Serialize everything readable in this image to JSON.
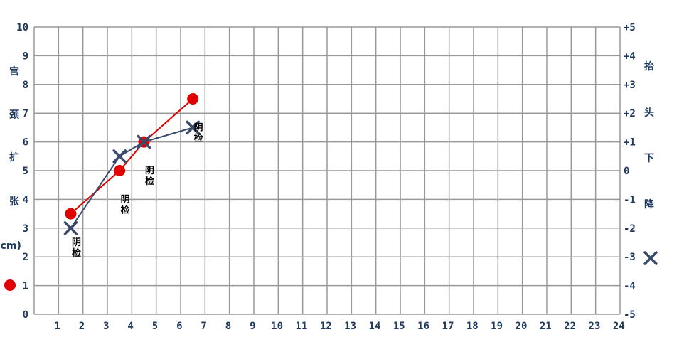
{
  "chart_data": {
    "type": "line",
    "x_ticks": [
      "1",
      "2",
      "3",
      "4",
      "5",
      "6",
      "7",
      "8",
      "9",
      "10",
      "11",
      "12",
      "13",
      "14",
      "15",
      "16",
      "17",
      "18",
      "19",
      "20",
      "21",
      "22",
      "23",
      "24"
    ],
    "y_left_ticks": [
      "0",
      "1",
      "2",
      "3",
      "4",
      "5",
      "6",
      "7",
      "8",
      "9",
      "10"
    ],
    "y_right_ticks": [
      "-5",
      "-4",
      "-3",
      "-2",
      "-1",
      "0",
      "+1",
      "+2",
      "+3",
      "+4",
      "+5"
    ],
    "xlim": [
      0,
      24
    ],
    "ylim_left": [
      0,
      10
    ],
    "ylim_right": [
      -5,
      5
    ],
    "grid": true,
    "left_axis_label": [
      "宫",
      "颈",
      "扩",
      "张",
      "(cm)"
    ],
    "right_axis_label": [
      "抬",
      "头",
      "下",
      "降"
    ],
    "colors": {
      "dilation": "#e00000",
      "descent": "#3a4a6b",
      "grid": "#999999",
      "tick": "#1f3a5f"
    },
    "legend": [
      {
        "marker": "circle",
        "color": "#e00000",
        "series": "dilation",
        "position": "left"
      },
      {
        "marker": "x",
        "color": "#3a4a6b",
        "series": "descent",
        "position": "right"
      }
    ],
    "series": [
      {
        "key": "dilation",
        "marker": "circle",
        "color": "#e00000",
        "axis": "left",
        "points": [
          [
            1.5,
            3.5
          ],
          [
            3.5,
            5
          ],
          [
            4.5,
            6
          ],
          [
            6.5,
            7.5
          ]
        ]
      },
      {
        "key": "descent",
        "marker": "x",
        "color": "#3a4a6b",
        "axis": "right",
        "points": [
          [
            1.5,
            -2
          ],
          [
            3.5,
            0.5
          ],
          [
            4.5,
            1
          ],
          [
            6.5,
            1.5
          ]
        ]
      }
    ],
    "annotations": [
      {
        "text": [
          "阴",
          "检"
        ],
        "x": 1.5,
        "y_left": 2.4
      },
      {
        "text": [
          "阴",
          "检"
        ],
        "x": 3.5,
        "y_left": 3.9
      },
      {
        "text": [
          "阴",
          "检"
        ],
        "x": 4.5,
        "y_left": 4.9
      },
      {
        "text": [
          "阴",
          "检"
        ],
        "x": 6.5,
        "y_left": 6.4
      }
    ]
  }
}
